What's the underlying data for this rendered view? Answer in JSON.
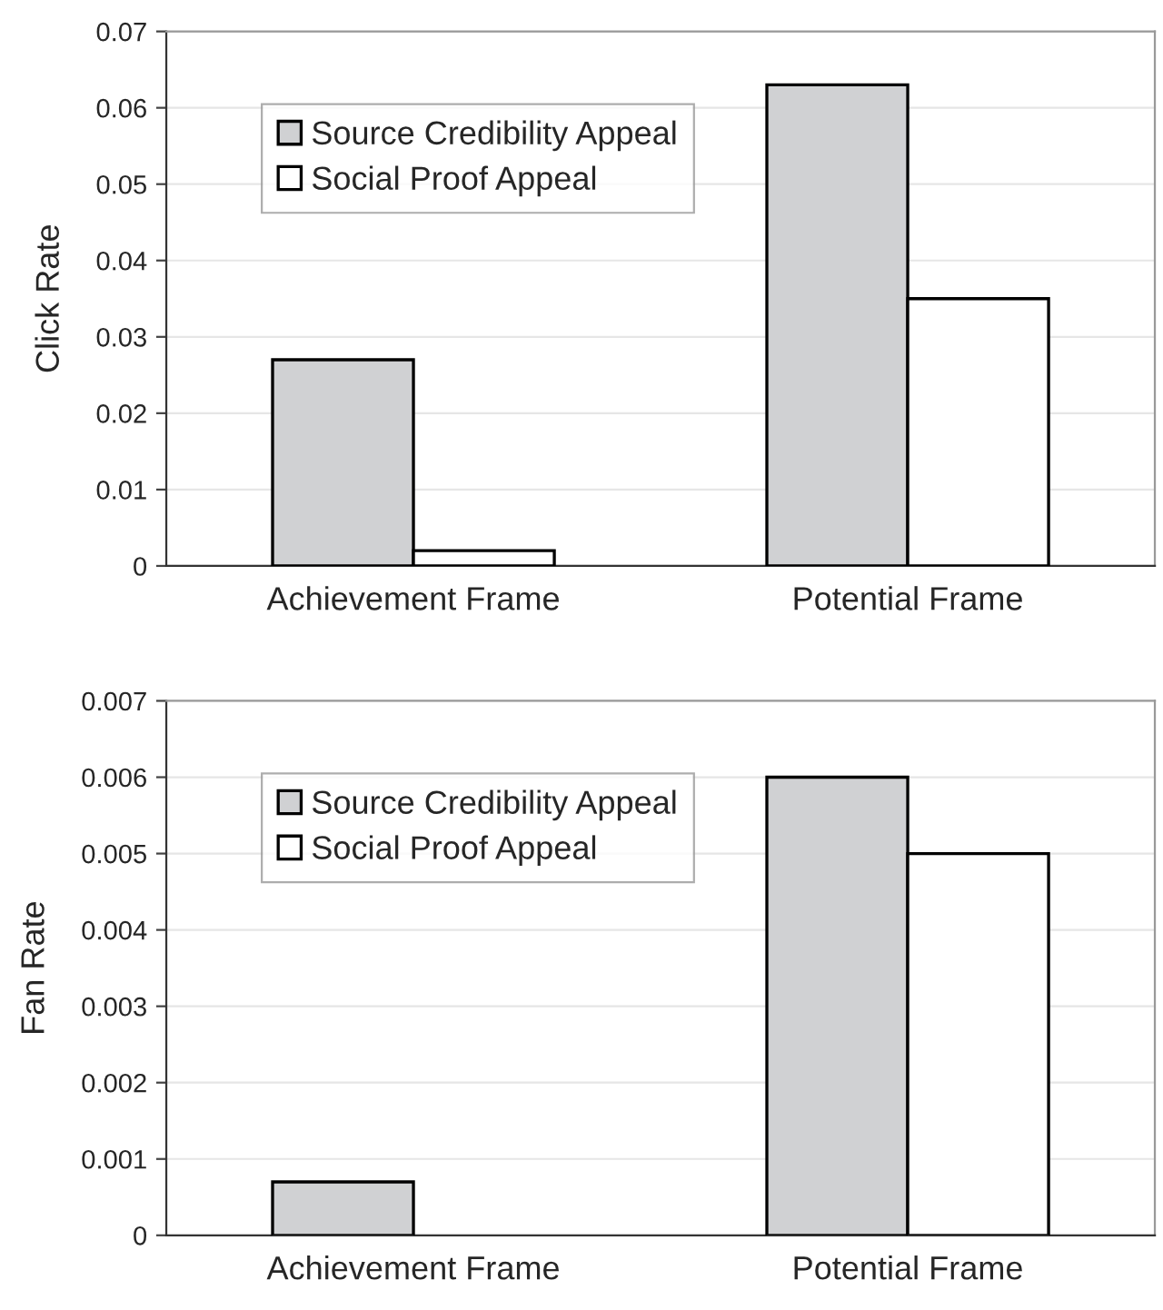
{
  "chart_data": [
    {
      "type": "bar",
      "ylabel": "Click Rate",
      "categories": [
        "Achievement Frame",
        "Potential Frame"
      ],
      "series": [
        {
          "name": "Source Credibility Appeal",
          "color": "#d0d1d3",
          "values": [
            0.027,
            0.063
          ]
        },
        {
          "name": "Social Proof Appeal",
          "color": "#ffffff",
          "values": [
            0.002,
            0.035
          ]
        }
      ],
      "ylim": [
        0,
        0.07
      ],
      "yticks": [
        {
          "value": 0,
          "label": "0"
        },
        0.01,
        0.02,
        0.03,
        0.04,
        0.05,
        0.06,
        0.07
      ],
      "grid": "y",
      "legend": "top left"
    },
    {
      "type": "bar",
      "ylabel": "Fan Rate",
      "categories": [
        "Achievement Frame",
        "Potential Frame"
      ],
      "series": [
        {
          "name": "Source Credibility Appeal",
          "color": "#d0d1d3",
          "values": [
            0.0007,
            0.006
          ]
        },
        {
          "name": "Social Proof Appeal",
          "color": "#ffffff",
          "values": [
            null,
            0.005
          ]
        }
      ],
      "ylim": [
        0,
        0.007
      ],
      "yticks": [
        {
          "value": 0,
          "label": "0"
        },
        0.001,
        0.002,
        0.003,
        0.004,
        0.005,
        0.006,
        0.007
      ],
      "grid": "y",
      "legend": "top left"
    }
  ]
}
